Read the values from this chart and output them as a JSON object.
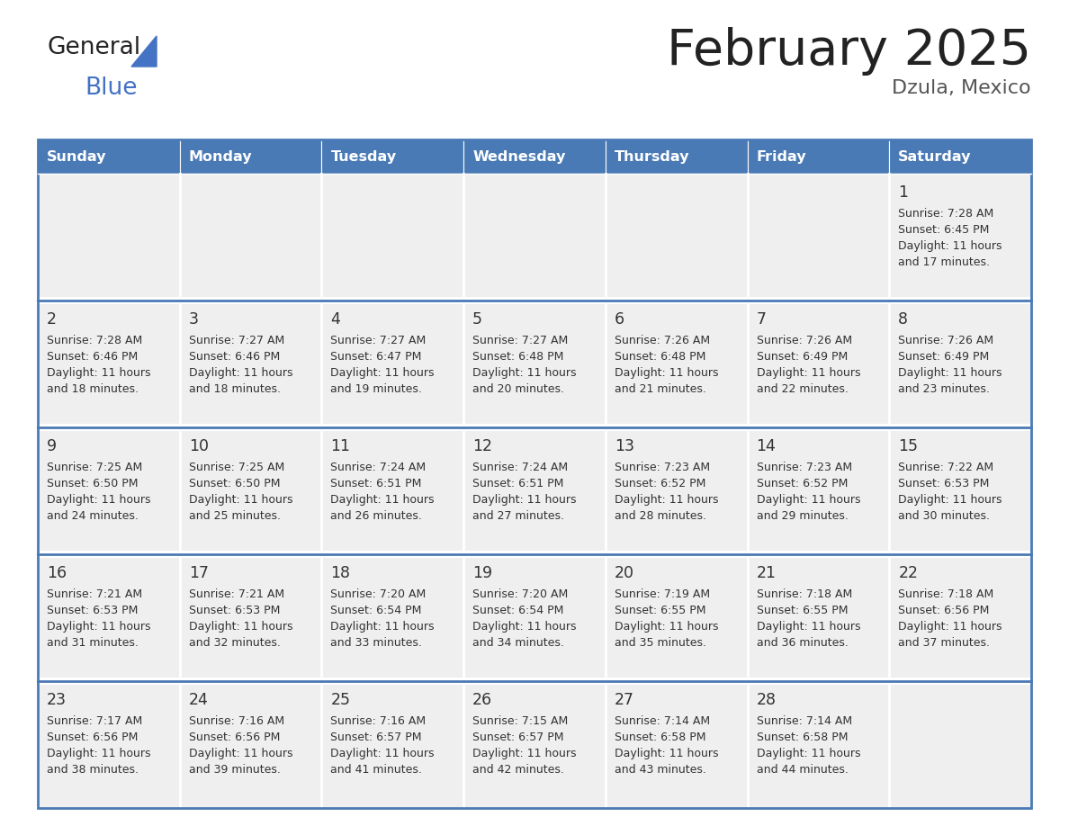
{
  "title": "February 2025",
  "subtitle": "Dzula, Mexico",
  "header_bg": "#4a7ab5",
  "header_text_color": "#FFFFFF",
  "weekdays": [
    "Sunday",
    "Monday",
    "Tuesday",
    "Wednesday",
    "Thursday",
    "Friday",
    "Saturday"
  ],
  "cell_bg": "#EFEFEF",
  "cell_border_color": "#4a7ab5",
  "day_number_color": "#333333",
  "text_color": "#333333",
  "calendar": [
    [
      null,
      null,
      null,
      null,
      null,
      null,
      {
        "day": 1,
        "sunrise": "7:28 AM",
        "sunset": "6:45 PM",
        "daylight": "11 hours",
        "daylight2": "and 17 minutes."
      }
    ],
    [
      {
        "day": 2,
        "sunrise": "7:28 AM",
        "sunset": "6:46 PM",
        "daylight": "11 hours",
        "daylight2": "and 18 minutes."
      },
      {
        "day": 3,
        "sunrise": "7:27 AM",
        "sunset": "6:46 PM",
        "daylight": "11 hours",
        "daylight2": "and 18 minutes."
      },
      {
        "day": 4,
        "sunrise": "7:27 AM",
        "sunset": "6:47 PM",
        "daylight": "11 hours",
        "daylight2": "and 19 minutes."
      },
      {
        "day": 5,
        "sunrise": "7:27 AM",
        "sunset": "6:48 PM",
        "daylight": "11 hours",
        "daylight2": "and 20 minutes."
      },
      {
        "day": 6,
        "sunrise": "7:26 AM",
        "sunset": "6:48 PM",
        "daylight": "11 hours",
        "daylight2": "and 21 minutes."
      },
      {
        "day": 7,
        "sunrise": "7:26 AM",
        "sunset": "6:49 PM",
        "daylight": "11 hours",
        "daylight2": "and 22 minutes."
      },
      {
        "day": 8,
        "sunrise": "7:26 AM",
        "sunset": "6:49 PM",
        "daylight": "11 hours",
        "daylight2": "and 23 minutes."
      }
    ],
    [
      {
        "day": 9,
        "sunrise": "7:25 AM",
        "sunset": "6:50 PM",
        "daylight": "11 hours",
        "daylight2": "and 24 minutes."
      },
      {
        "day": 10,
        "sunrise": "7:25 AM",
        "sunset": "6:50 PM",
        "daylight": "11 hours",
        "daylight2": "and 25 minutes."
      },
      {
        "day": 11,
        "sunrise": "7:24 AM",
        "sunset": "6:51 PM",
        "daylight": "11 hours",
        "daylight2": "and 26 minutes."
      },
      {
        "day": 12,
        "sunrise": "7:24 AM",
        "sunset": "6:51 PM",
        "daylight": "11 hours",
        "daylight2": "and 27 minutes."
      },
      {
        "day": 13,
        "sunrise": "7:23 AM",
        "sunset": "6:52 PM",
        "daylight": "11 hours",
        "daylight2": "and 28 minutes."
      },
      {
        "day": 14,
        "sunrise": "7:23 AM",
        "sunset": "6:52 PM",
        "daylight": "11 hours",
        "daylight2": "and 29 minutes."
      },
      {
        "day": 15,
        "sunrise": "7:22 AM",
        "sunset": "6:53 PM",
        "daylight": "11 hours",
        "daylight2": "and 30 minutes."
      }
    ],
    [
      {
        "day": 16,
        "sunrise": "7:21 AM",
        "sunset": "6:53 PM",
        "daylight": "11 hours",
        "daylight2": "and 31 minutes."
      },
      {
        "day": 17,
        "sunrise": "7:21 AM",
        "sunset": "6:53 PM",
        "daylight": "11 hours",
        "daylight2": "and 32 minutes."
      },
      {
        "day": 18,
        "sunrise": "7:20 AM",
        "sunset": "6:54 PM",
        "daylight": "11 hours",
        "daylight2": "and 33 minutes."
      },
      {
        "day": 19,
        "sunrise": "7:20 AM",
        "sunset": "6:54 PM",
        "daylight": "11 hours",
        "daylight2": "and 34 minutes."
      },
      {
        "day": 20,
        "sunrise": "7:19 AM",
        "sunset": "6:55 PM",
        "daylight": "11 hours",
        "daylight2": "and 35 minutes."
      },
      {
        "day": 21,
        "sunrise": "7:18 AM",
        "sunset": "6:55 PM",
        "daylight": "11 hours",
        "daylight2": "and 36 minutes."
      },
      {
        "day": 22,
        "sunrise": "7:18 AM",
        "sunset": "6:56 PM",
        "daylight": "11 hours",
        "daylight2": "and 37 minutes."
      }
    ],
    [
      {
        "day": 23,
        "sunrise": "7:17 AM",
        "sunset": "6:56 PM",
        "daylight": "11 hours",
        "daylight2": "and 38 minutes."
      },
      {
        "day": 24,
        "sunrise": "7:16 AM",
        "sunset": "6:56 PM",
        "daylight": "11 hours",
        "daylight2": "and 39 minutes."
      },
      {
        "day": 25,
        "sunrise": "7:16 AM",
        "sunset": "6:57 PM",
        "daylight": "11 hours",
        "daylight2": "and 41 minutes."
      },
      {
        "day": 26,
        "sunrise": "7:15 AM",
        "sunset": "6:57 PM",
        "daylight": "11 hours",
        "daylight2": "and 42 minutes."
      },
      {
        "day": 27,
        "sunrise": "7:14 AM",
        "sunset": "6:58 PM",
        "daylight": "11 hours",
        "daylight2": "and 43 minutes."
      },
      {
        "day": 28,
        "sunrise": "7:14 AM",
        "sunset": "6:58 PM",
        "daylight": "11 hours",
        "daylight2": "and 44 minutes."
      },
      null
    ]
  ]
}
